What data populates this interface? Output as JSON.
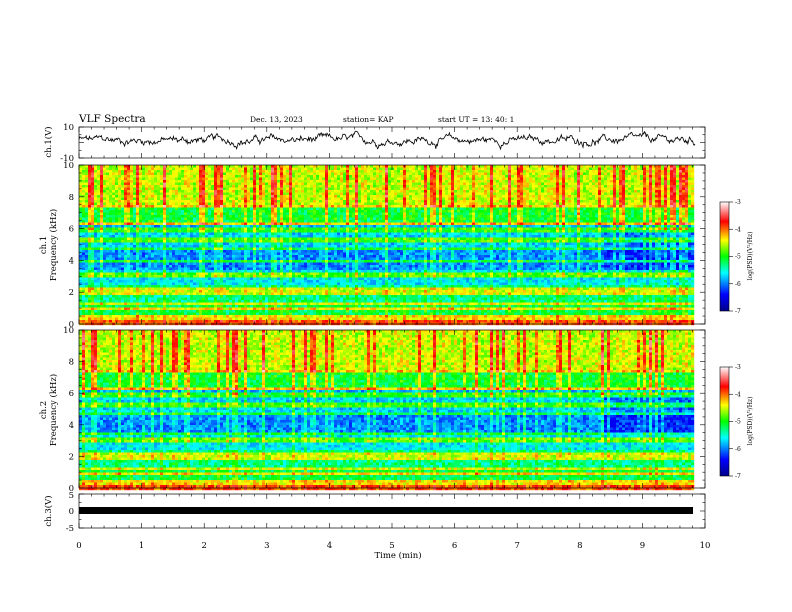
{
  "header": {
    "title": "VLF Spectra",
    "date": "Dec. 13, 2023",
    "station": "station= KAP",
    "start": "start  UT  =   13: 40: 1"
  },
  "chart_data": [
    {
      "type": "line",
      "panel": "ch1",
      "ylabel": "ch.1(V)",
      "ylim": [
        -10,
        10
      ],
      "y_ticks": [
        "10",
        "-10"
      ],
      "x_range_min": [
        0,
        9.85
      ],
      "description_values": "noisy waveform oscillating between about -5 and +8 V",
      "series_color": "#000000"
    },
    {
      "type": "heatmap",
      "panel": "ch1-spectrogram",
      "ylabel_line1": "ch.1",
      "ylabel_line2": "Frequency  (kHz)",
      "ylim_khz": [
        0,
        10
      ],
      "y_ticks": [
        "0",
        "2",
        "4",
        "6",
        "8",
        "10"
      ],
      "x_range_min": [
        0,
        9.85
      ],
      "colorbar": {
        "label": "log(PSD)(V²/Hz)",
        "range": [
          -7,
          -3
        ],
        "ticks": [
          "-3",
          "-4",
          "-5",
          "-6",
          "-7"
        ],
        "colors": [
          "#00008b",
          "#0000ff",
          "#00ffff",
          "#00ff00",
          "#ffff00",
          "#ff0000",
          "#ffffff"
        ]
      },
      "bands_khz": [
        0.2,
        0.5,
        1.0,
        1.3,
        2.0,
        2.3,
        3.1,
        4.0,
        4.8,
        5.3,
        5.9,
        6.3,
        7.4
      ]
    },
    {
      "type": "heatmap",
      "panel": "ch2-spectrogram",
      "ylabel_line1": "ch.2",
      "ylabel_line2": "Frequency  (kHz)",
      "ylim_khz": [
        0,
        10
      ],
      "y_ticks": [
        "0",
        "2",
        "4",
        "6",
        "8",
        "10"
      ],
      "x_range_min": [
        0,
        9.85
      ],
      "colorbar": {
        "label": "log(PSD)(V²/Hz)",
        "range": [
          -7,
          -3
        ],
        "ticks": [
          "-3",
          "-4",
          "-5",
          "-6",
          "-7"
        ],
        "colors": [
          "#00008b",
          "#0000ff",
          "#00ffff",
          "#00ff00",
          "#ffff00",
          "#ff0000",
          "#ffffff"
        ]
      },
      "bands_khz": [
        0.2,
        0.5,
        1.0,
        1.3,
        2.0,
        2.3,
        3.1,
        3.5,
        4.8,
        5.3,
        5.9,
        6.3,
        7.4
      ]
    },
    {
      "type": "line",
      "panel": "ch3",
      "ylabel": "ch.3(V)",
      "ylim": [
        -5,
        5
      ],
      "y_ticks": [
        "5",
        "0",
        "-5"
      ],
      "x_range_min": [
        0,
        9.85
      ],
      "constant_value": 0,
      "series_color": "#000000"
    }
  ],
  "x_axis": {
    "label": "Time  (min)",
    "range": [
      0,
      10
    ],
    "ticks": [
      "0",
      "1",
      "2",
      "3",
      "4",
      "5",
      "6",
      "7",
      "8",
      "9",
      "10"
    ]
  }
}
